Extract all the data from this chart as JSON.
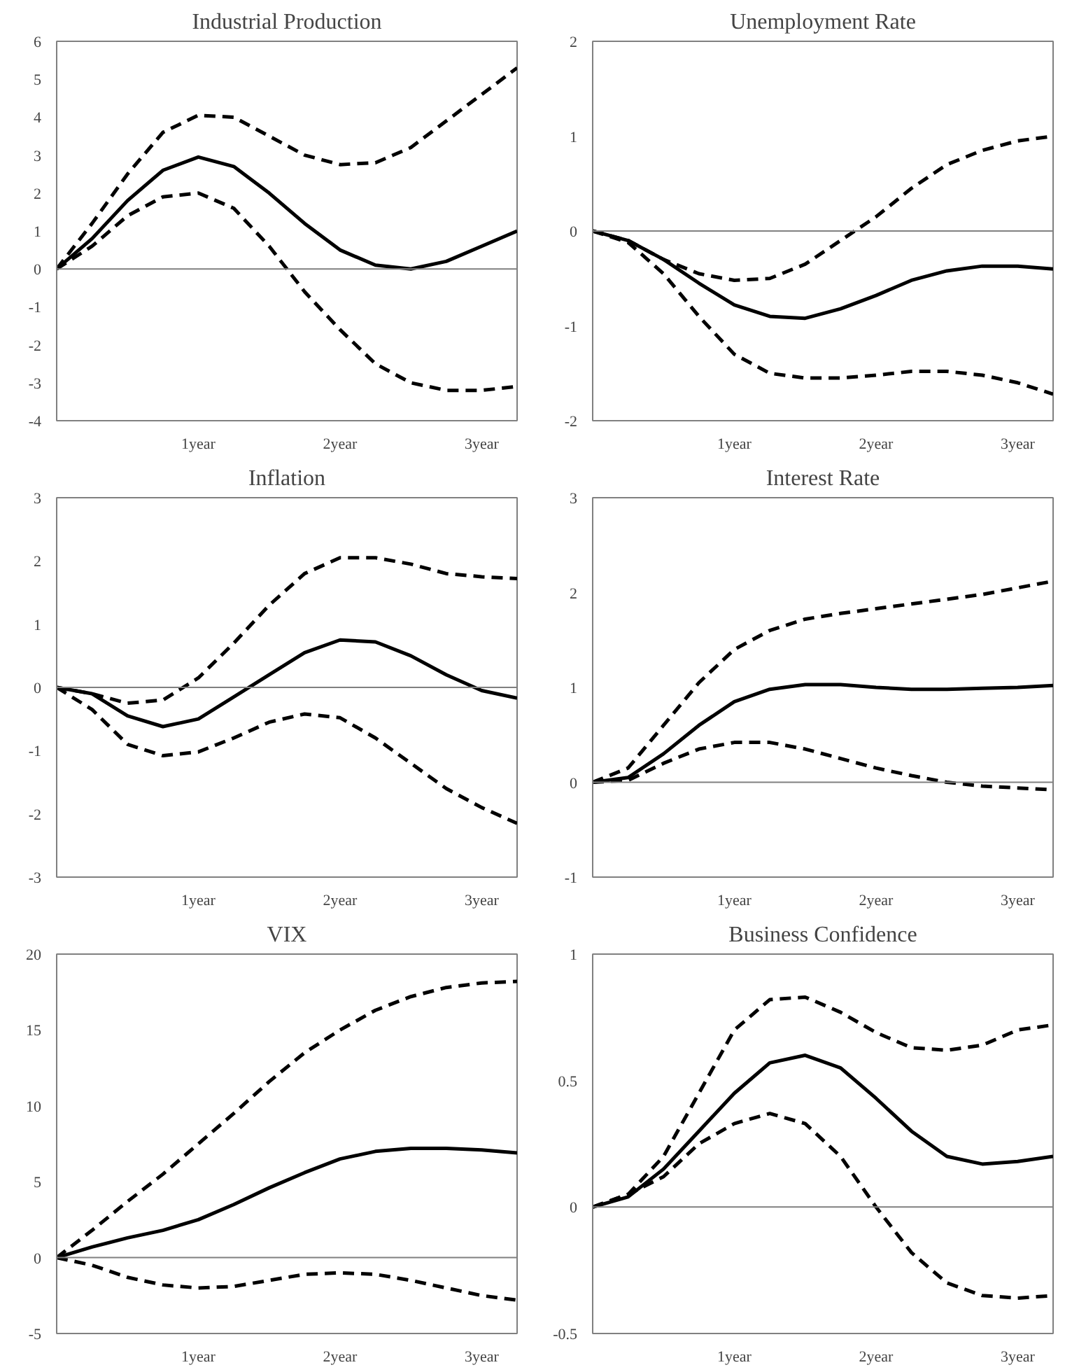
{
  "chart_data": [
    {
      "type": "line",
      "title": "Industrial Production",
      "x": [
        0,
        0.25,
        0.5,
        0.75,
        1,
        1.25,
        1.5,
        1.75,
        2,
        2.25,
        2.5,
        2.75,
        3,
        3.25
      ],
      "xlim": [
        0,
        3.25
      ],
      "xticks": [
        {
          "value": 1,
          "label": "1year"
        },
        {
          "value": 2,
          "label": "2year"
        },
        {
          "value": 3,
          "label": "3year"
        }
      ],
      "ylim": [
        -4,
        6
      ],
      "yticks": [
        -4,
        -3,
        -2,
        -1,
        0,
        1,
        2,
        3,
        4,
        5,
        6
      ],
      "grid": false,
      "ref_lines": [
        {
          "axis": "y",
          "value": 0,
          "color": "#808080"
        }
      ],
      "series": [
        {
          "color": "#000000",
          "line_style": "solid",
          "values": [
            0,
            0.8,
            1.8,
            2.6,
            2.95,
            2.7,
            2.0,
            1.2,
            0.5,
            0.1,
            0.0,
            0.2,
            0.6,
            1.0
          ]
        },
        {
          "color": "#000000",
          "line_style": "dashed",
          "values": [
            0,
            1.2,
            2.5,
            3.6,
            4.05,
            4.0,
            3.5,
            3.0,
            2.75,
            2.8,
            3.2,
            3.9,
            4.6,
            5.3
          ]
        },
        {
          "color": "#000000",
          "line_style": "dashed",
          "values": [
            0,
            0.6,
            1.4,
            1.9,
            2.0,
            1.6,
            0.6,
            -0.6,
            -1.6,
            -2.5,
            -3.0,
            -3.2,
            -3.2,
            -3.1
          ]
        }
      ]
    },
    {
      "type": "line",
      "title": "Unemployment Rate",
      "x": [
        0,
        0.25,
        0.5,
        0.75,
        1,
        1.25,
        1.5,
        1.75,
        2,
        2.25,
        2.5,
        2.75,
        3,
        3.25
      ],
      "xlim": [
        0,
        3.25
      ],
      "xticks": [
        {
          "value": 1,
          "label": "1year"
        },
        {
          "value": 2,
          "label": "2year"
        },
        {
          "value": 3,
          "label": "3year"
        }
      ],
      "ylim": [
        -2,
        2
      ],
      "yticks": [
        -2,
        -1,
        0,
        1,
        2
      ],
      "grid": false,
      "ref_lines": [
        {
          "axis": "y",
          "value": 0,
          "color": "#808080"
        }
      ],
      "series": [
        {
          "color": "#000000",
          "line_style": "solid",
          "values": [
            0,
            -0.1,
            -0.3,
            -0.55,
            -0.78,
            -0.9,
            -0.92,
            -0.82,
            -0.68,
            -0.52,
            -0.42,
            -0.37,
            -0.37,
            -0.4
          ]
        },
        {
          "color": "#000000",
          "line_style": "dashed",
          "values": [
            0,
            -0.1,
            -0.3,
            -0.45,
            -0.52,
            -0.5,
            -0.35,
            -0.1,
            0.15,
            0.45,
            0.7,
            0.85,
            0.95,
            1.0
          ]
        },
        {
          "color": "#000000",
          "line_style": "dashed",
          "values": [
            0,
            -0.12,
            -0.45,
            -0.9,
            -1.3,
            -1.5,
            -1.55,
            -1.55,
            -1.52,
            -1.48,
            -1.48,
            -1.52,
            -1.6,
            -1.72
          ]
        }
      ]
    },
    {
      "type": "line",
      "title": "Inflation",
      "x": [
        0,
        0.25,
        0.5,
        0.75,
        1,
        1.25,
        1.5,
        1.75,
        2,
        2.25,
        2.5,
        2.75,
        3,
        3.25
      ],
      "xlim": [
        0,
        3.25
      ],
      "xticks": [
        {
          "value": 1,
          "label": "1year"
        },
        {
          "value": 2,
          "label": "2year"
        },
        {
          "value": 3,
          "label": "3year"
        }
      ],
      "ylim": [
        -3,
        3
      ],
      "yticks": [
        -3,
        -2,
        -1,
        0,
        1,
        2,
        3
      ],
      "grid": false,
      "ref_lines": [
        {
          "axis": "y",
          "value": 0,
          "color": "#808080"
        }
      ],
      "series": [
        {
          "color": "#000000",
          "line_style": "solid",
          "values": [
            0,
            -0.1,
            -0.45,
            -0.62,
            -0.5,
            -0.15,
            0.2,
            0.55,
            0.75,
            0.72,
            0.5,
            0.2,
            -0.05,
            -0.17
          ]
        },
        {
          "color": "#000000",
          "line_style": "dashed",
          "values": [
            0,
            -0.1,
            -0.25,
            -0.2,
            0.15,
            0.7,
            1.3,
            1.8,
            2.05,
            2.05,
            1.95,
            1.8,
            1.75,
            1.72
          ]
        },
        {
          "color": "#000000",
          "line_style": "dashed",
          "values": [
            0,
            -0.35,
            -0.9,
            -1.08,
            -1.02,
            -0.8,
            -0.55,
            -0.42,
            -0.48,
            -0.8,
            -1.2,
            -1.6,
            -1.9,
            -2.15
          ]
        }
      ]
    },
    {
      "type": "line",
      "title": "Interest Rate",
      "x": [
        0,
        0.25,
        0.5,
        0.75,
        1,
        1.25,
        1.5,
        1.75,
        2,
        2.25,
        2.5,
        2.75,
        3,
        3.25
      ],
      "xlim": [
        0,
        3.25
      ],
      "xticks": [
        {
          "value": 1,
          "label": "1year"
        },
        {
          "value": 2,
          "label": "2year"
        },
        {
          "value": 3,
          "label": "3year"
        }
      ],
      "ylim": [
        -1,
        3
      ],
      "yticks": [
        -1,
        0,
        1,
        2,
        3
      ],
      "grid": false,
      "ref_lines": [
        {
          "axis": "y",
          "value": 0,
          "color": "#808080"
        }
      ],
      "series": [
        {
          "color": "#000000",
          "line_style": "solid",
          "values": [
            0,
            0.05,
            0.3,
            0.6,
            0.85,
            0.98,
            1.03,
            1.03,
            1.0,
            0.98,
            0.98,
            0.99,
            1.0,
            1.02
          ]
        },
        {
          "color": "#000000",
          "line_style": "dashed",
          "values": [
            0,
            0.15,
            0.6,
            1.05,
            1.4,
            1.6,
            1.72,
            1.78,
            1.83,
            1.88,
            1.93,
            1.98,
            2.05,
            2.12
          ]
        },
        {
          "color": "#000000",
          "line_style": "dashed",
          "values": [
            0,
            0.02,
            0.2,
            0.35,
            0.42,
            0.42,
            0.35,
            0.25,
            0.15,
            0.07,
            0.0,
            -0.04,
            -0.06,
            -0.08
          ]
        }
      ]
    },
    {
      "type": "line",
      "title": "VIX",
      "x": [
        0,
        0.25,
        0.5,
        0.75,
        1,
        1.25,
        1.5,
        1.75,
        2,
        2.25,
        2.5,
        2.75,
        3,
        3.25
      ],
      "xlim": [
        0,
        3.25
      ],
      "xticks": [
        {
          "value": 1,
          "label": "1year"
        },
        {
          "value": 2,
          "label": "2year"
        },
        {
          "value": 3,
          "label": "3year"
        }
      ],
      "ylim": [
        -5,
        20
      ],
      "yticks": [
        -5,
        0,
        5,
        10,
        15,
        20
      ],
      "grid": false,
      "ref_lines": [
        {
          "axis": "y",
          "value": 0,
          "color": "#808080"
        }
      ],
      "series": [
        {
          "color": "#000000",
          "line_style": "solid",
          "values": [
            0,
            0.7,
            1.3,
            1.8,
            2.5,
            3.5,
            4.6,
            5.6,
            6.5,
            7.0,
            7.2,
            7.2,
            7.1,
            6.9
          ]
        },
        {
          "color": "#000000",
          "line_style": "dashed",
          "values": [
            0,
            1.8,
            3.7,
            5.5,
            7.5,
            9.5,
            11.6,
            13.5,
            15.0,
            16.3,
            17.2,
            17.8,
            18.1,
            18.2
          ]
        },
        {
          "color": "#000000",
          "line_style": "dashed",
          "values": [
            0,
            -0.5,
            -1.3,
            -1.8,
            -2.0,
            -1.9,
            -1.5,
            -1.1,
            -1.0,
            -1.1,
            -1.5,
            -2.0,
            -2.5,
            -2.8
          ]
        }
      ]
    },
    {
      "type": "line",
      "title": "Business Confidence",
      "x": [
        0,
        0.25,
        0.5,
        0.75,
        1,
        1.25,
        1.5,
        1.75,
        2,
        2.25,
        2.5,
        2.75,
        3,
        3.25
      ],
      "xlim": [
        0,
        3.25
      ],
      "xticks": [
        {
          "value": 1,
          "label": "1year"
        },
        {
          "value": 2,
          "label": "2year"
        },
        {
          "value": 3,
          "label": "3year"
        }
      ],
      "ylim": [
        -0.5,
        1
      ],
      "yticks": [
        -0.5,
        0,
        0.5,
        1
      ],
      "grid": false,
      "ref_lines": [
        {
          "axis": "y",
          "value": 0,
          "color": "#808080"
        }
      ],
      "series": [
        {
          "color": "#000000",
          "line_style": "solid",
          "values": [
            0,
            0.04,
            0.15,
            0.3,
            0.45,
            0.57,
            0.6,
            0.55,
            0.43,
            0.3,
            0.2,
            0.17,
            0.18,
            0.2
          ]
        },
        {
          "color": "#000000",
          "line_style": "dashed",
          "values": [
            0,
            0.05,
            0.2,
            0.45,
            0.7,
            0.82,
            0.83,
            0.77,
            0.69,
            0.63,
            0.62,
            0.64,
            0.7,
            0.72
          ]
        },
        {
          "color": "#000000",
          "line_style": "dashed",
          "values": [
            0,
            0.05,
            0.12,
            0.25,
            0.33,
            0.37,
            0.33,
            0.2,
            0.0,
            -0.18,
            -0.3,
            -0.35,
            -0.36,
            -0.35
          ]
        }
      ]
    }
  ]
}
